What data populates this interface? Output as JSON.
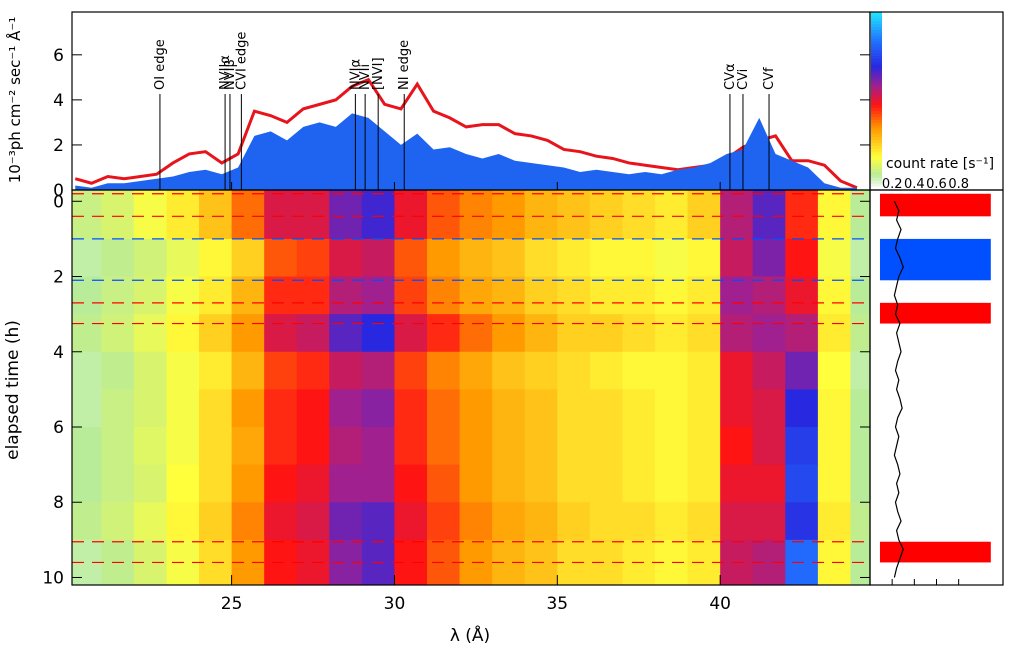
{
  "chart_data": [
    {
      "type": "area_line",
      "ylabel": "10⁻³ph cm⁻² sec⁻¹ Å⁻¹",
      "x": [
        20.2,
        20.7,
        21.2,
        21.7,
        22.2,
        22.7,
        23.2,
        23.7,
        24.2,
        24.7,
        25.2,
        25.7,
        26.2,
        26.7,
        27.2,
        27.7,
        28.2,
        28.7,
        29.2,
        29.7,
        30.2,
        30.7,
        31.2,
        31.7,
        32.2,
        32.7,
        33.2,
        33.7,
        34.2,
        34.7,
        35.2,
        35.7,
        36.2,
        36.7,
        37.2,
        37.7,
        38.2,
        38.7,
        39.2,
        39.7,
        40.2,
        40.7,
        41.2,
        41.7,
        42.2,
        42.7,
        43.2,
        43.7,
        44.2
      ],
      "series": [
        {
          "style": "line",
          "color": "#e8141c",
          "values": [
            0.5,
            0.3,
            0.6,
            0.5,
            0.6,
            0.7,
            1.2,
            1.6,
            1.7,
            1.2,
            1.6,
            3.5,
            3.3,
            3.0,
            3.6,
            3.8,
            4.0,
            4.6,
            4.9,
            3.8,
            3.6,
            4.7,
            3.5,
            3.2,
            2.8,
            2.9,
            2.9,
            2.5,
            2.4,
            2.2,
            1.8,
            1.7,
            1.5,
            1.4,
            1.2,
            1.1,
            1.0,
            0.9,
            1.0,
            1.1,
            1.4,
            1.9,
            2.2,
            2.4,
            1.3,
            1.3,
            1.1,
            0.4,
            0.1
          ]
        },
        {
          "style": "area",
          "color": "#1e64f0",
          "values": [
            0.2,
            0.1,
            0.3,
            0.3,
            0.4,
            0.5,
            0.6,
            0.8,
            0.9,
            0.7,
            1.0,
            2.4,
            2.6,
            2.2,
            2.8,
            3.0,
            2.8,
            3.4,
            3.2,
            2.6,
            2.0,
            2.5,
            1.8,
            1.9,
            1.6,
            1.4,
            1.6,
            1.3,
            1.2,
            1.1,
            1.0,
            0.8,
            0.9,
            0.8,
            0.7,
            0.8,
            0.7,
            0.9,
            1.0,
            1.2,
            1.6,
            1.8,
            3.2,
            1.6,
            1.3,
            1.0,
            0.3,
            0.1,
            0.1
          ]
        }
      ],
      "xlim": [
        20.1,
        44.6
      ],
      "ylim": [
        0,
        7.9
      ],
      "yticks": [
        0,
        2,
        4,
        6
      ],
      "annotations": [
        {
          "x": 22.8,
          "text": "OI edge"
        },
        {
          "x": 24.8,
          "text": "NVIIα"
        },
        {
          "x": 24.95,
          "text": "NVIβ"
        },
        {
          "x": 25.3,
          "text": "CVI edge"
        },
        {
          "x": 28.8,
          "text": "NVIα"
        },
        {
          "x": 29.1,
          "text": "NVIi"
        },
        {
          "x": 29.5,
          "text": "[NVI]"
        },
        {
          "x": 30.3,
          "text": "NI edge"
        },
        {
          "x": 40.3,
          "text": "CVα"
        },
        {
          "x": 40.7,
          "text": "CVi"
        },
        {
          "x": 41.5,
          "text": "CVf"
        }
      ]
    },
    {
      "type": "heatmap",
      "xlabel": "λ (Å)",
      "ylabel": "elapsed time (h)",
      "xbins": [
        20.1,
        21,
        22,
        23,
        24,
        25,
        26,
        27,
        28,
        29,
        30,
        31,
        32,
        33,
        34,
        35,
        36,
        37,
        38,
        39,
        40,
        41,
        42,
        43,
        44,
        44.6
      ],
      "ybins": [
        -0.3,
        1,
        2,
        3,
        4,
        5,
        6,
        7,
        8,
        9,
        10.2
      ],
      "values": [
        [
          0.08,
          0.1,
          0.14,
          0.18,
          0.24,
          0.34,
          0.46,
          0.46,
          0.56,
          0.6,
          0.44,
          0.36,
          0.32,
          0.3,
          0.26,
          0.24,
          0.22,
          0.2,
          0.18,
          0.22,
          0.5,
          0.58,
          0.4,
          0.16,
          0.06
        ],
        [
          0.05,
          0.07,
          0.09,
          0.12,
          0.16,
          0.22,
          0.36,
          0.38,
          0.46,
          0.48,
          0.36,
          0.3,
          0.26,
          0.24,
          0.2,
          0.18,
          0.16,
          0.16,
          0.14,
          0.16,
          0.48,
          0.55,
          0.42,
          0.14,
          0.05
        ],
        [
          0.06,
          0.08,
          0.1,
          0.14,
          0.18,
          0.26,
          0.4,
          0.4,
          0.5,
          0.52,
          0.38,
          0.32,
          0.28,
          0.26,
          0.22,
          0.2,
          0.18,
          0.18,
          0.16,
          0.18,
          0.52,
          0.5,
          0.44,
          0.16,
          0.06
        ],
        [
          0.07,
          0.09,
          0.12,
          0.16,
          0.22,
          0.3,
          0.46,
          0.48,
          0.58,
          0.62,
          0.46,
          0.4,
          0.34,
          0.3,
          0.26,
          0.22,
          0.22,
          0.2,
          0.18,
          0.2,
          0.5,
          0.52,
          0.5,
          0.18,
          0.07
        ],
        [
          0.05,
          0.07,
          0.1,
          0.14,
          0.18,
          0.26,
          0.38,
          0.4,
          0.48,
          0.5,
          0.38,
          0.32,
          0.28,
          0.24,
          0.22,
          0.2,
          0.18,
          0.16,
          0.16,
          0.18,
          0.44,
          0.48,
          0.56,
          0.15,
          0.05
        ],
        [
          0.05,
          0.08,
          0.1,
          0.14,
          0.2,
          0.3,
          0.4,
          0.42,
          0.52,
          0.54,
          0.4,
          0.34,
          0.3,
          0.26,
          0.24,
          0.2,
          0.2,
          0.18,
          0.16,
          0.18,
          0.44,
          0.46,
          0.62,
          0.16,
          0.06
        ],
        [
          0.06,
          0.08,
          0.11,
          0.14,
          0.2,
          0.28,
          0.4,
          0.42,
          0.5,
          0.52,
          0.4,
          0.34,
          0.3,
          0.26,
          0.24,
          0.2,
          0.2,
          0.18,
          0.16,
          0.18,
          0.42,
          0.46,
          0.66,
          0.16,
          0.06
        ],
        [
          0.06,
          0.08,
          0.1,
          0.15,
          0.2,
          0.3,
          0.42,
          0.44,
          0.52,
          0.52,
          0.42,
          0.36,
          0.3,
          0.26,
          0.24,
          0.2,
          0.2,
          0.18,
          0.16,
          0.18,
          0.44,
          0.44,
          0.68,
          0.16,
          0.06
        ],
        [
          0.07,
          0.09,
          0.12,
          0.16,
          0.22,
          0.32,
          0.44,
          0.46,
          0.56,
          0.58,
          0.44,
          0.38,
          0.32,
          0.28,
          0.26,
          0.22,
          0.2,
          0.2,
          0.18,
          0.2,
          0.46,
          0.46,
          0.64,
          0.18,
          0.07
        ],
        [
          0.05,
          0.07,
          0.1,
          0.14,
          0.2,
          0.3,
          0.42,
          0.44,
          0.54,
          0.58,
          0.42,
          0.36,
          0.3,
          0.26,
          0.24,
          0.2,
          0.2,
          0.18,
          0.16,
          0.18,
          0.48,
          0.5,
          0.74,
          0.16,
          0.06
        ]
      ],
      "clim": [
        0,
        0.9
      ],
      "colorscale": [
        [
          0,
          "#f2fbf0"
        ],
        [
          0.06,
          "#b8ec98"
        ],
        [
          0.15,
          "#ffff3c"
        ],
        [
          0.3,
          "#ff9a00"
        ],
        [
          0.42,
          "#ff1414"
        ],
        [
          0.52,
          "#a02090"
        ],
        [
          0.62,
          "#2828e0"
        ],
        [
          0.75,
          "#2070ff"
        ],
        [
          0.9,
          "#20e8ff"
        ]
      ],
      "xlim": [
        20.1,
        44.6
      ],
      "xticks": [
        25,
        30,
        35,
        40
      ],
      "ylim": [
        -0.3,
        10.2
      ],
      "yticks": [
        0,
        2,
        4,
        6,
        8,
        10
      ],
      "y_inverted": true
    },
    {
      "type": "line_horizontal",
      "xlabel": "count rate [s⁻¹]",
      "color": "#000000",
      "y": [
        0,
        0.25,
        0.5,
        0.75,
        1,
        1.25,
        1.5,
        1.75,
        2,
        2.25,
        2.5,
        2.75,
        3,
        3.25,
        3.5,
        3.75,
        4,
        4.25,
        4.5,
        4.75,
        5,
        5.25,
        5.5,
        5.75,
        6,
        6.25,
        6.5,
        6.75,
        7,
        7.25,
        7.5,
        7.75,
        8,
        8.25,
        8.5,
        8.75,
        9,
        9.25,
        9.5,
        9.75,
        10
      ],
      "values": [
        0.22,
        0.26,
        0.24,
        0.28,
        0.25,
        0.23,
        0.27,
        0.3,
        0.26,
        0.24,
        0.22,
        0.25,
        0.23,
        0.27,
        0.24,
        0.26,
        0.28,
        0.25,
        0.23,
        0.26,
        0.24,
        0.27,
        0.29,
        0.25,
        0.23,
        0.26,
        0.24,
        0.22,
        0.25,
        0.27,
        0.24,
        0.26,
        0.23,
        0.25,
        0.28,
        0.24,
        0.26,
        0.3,
        0.27,
        0.24,
        0.22
      ],
      "bands": [
        {
          "start": -0.2,
          "end": 0.4,
          "color": "#ff0000"
        },
        {
          "start": 1.0,
          "end": 2.1,
          "color": "#0050ff"
        },
        {
          "start": 2.7,
          "end": 3.25,
          "color": "#ff0000"
        },
        {
          "start": 9.05,
          "end": 9.6,
          "color": "#ff0000"
        }
      ],
      "xlim": [
        0,
        1.2
      ],
      "xticks": [
        0.2,
        0.4,
        0.6,
        0.8
      ],
      "ylim": [
        -0.3,
        10.2
      ]
    }
  ]
}
